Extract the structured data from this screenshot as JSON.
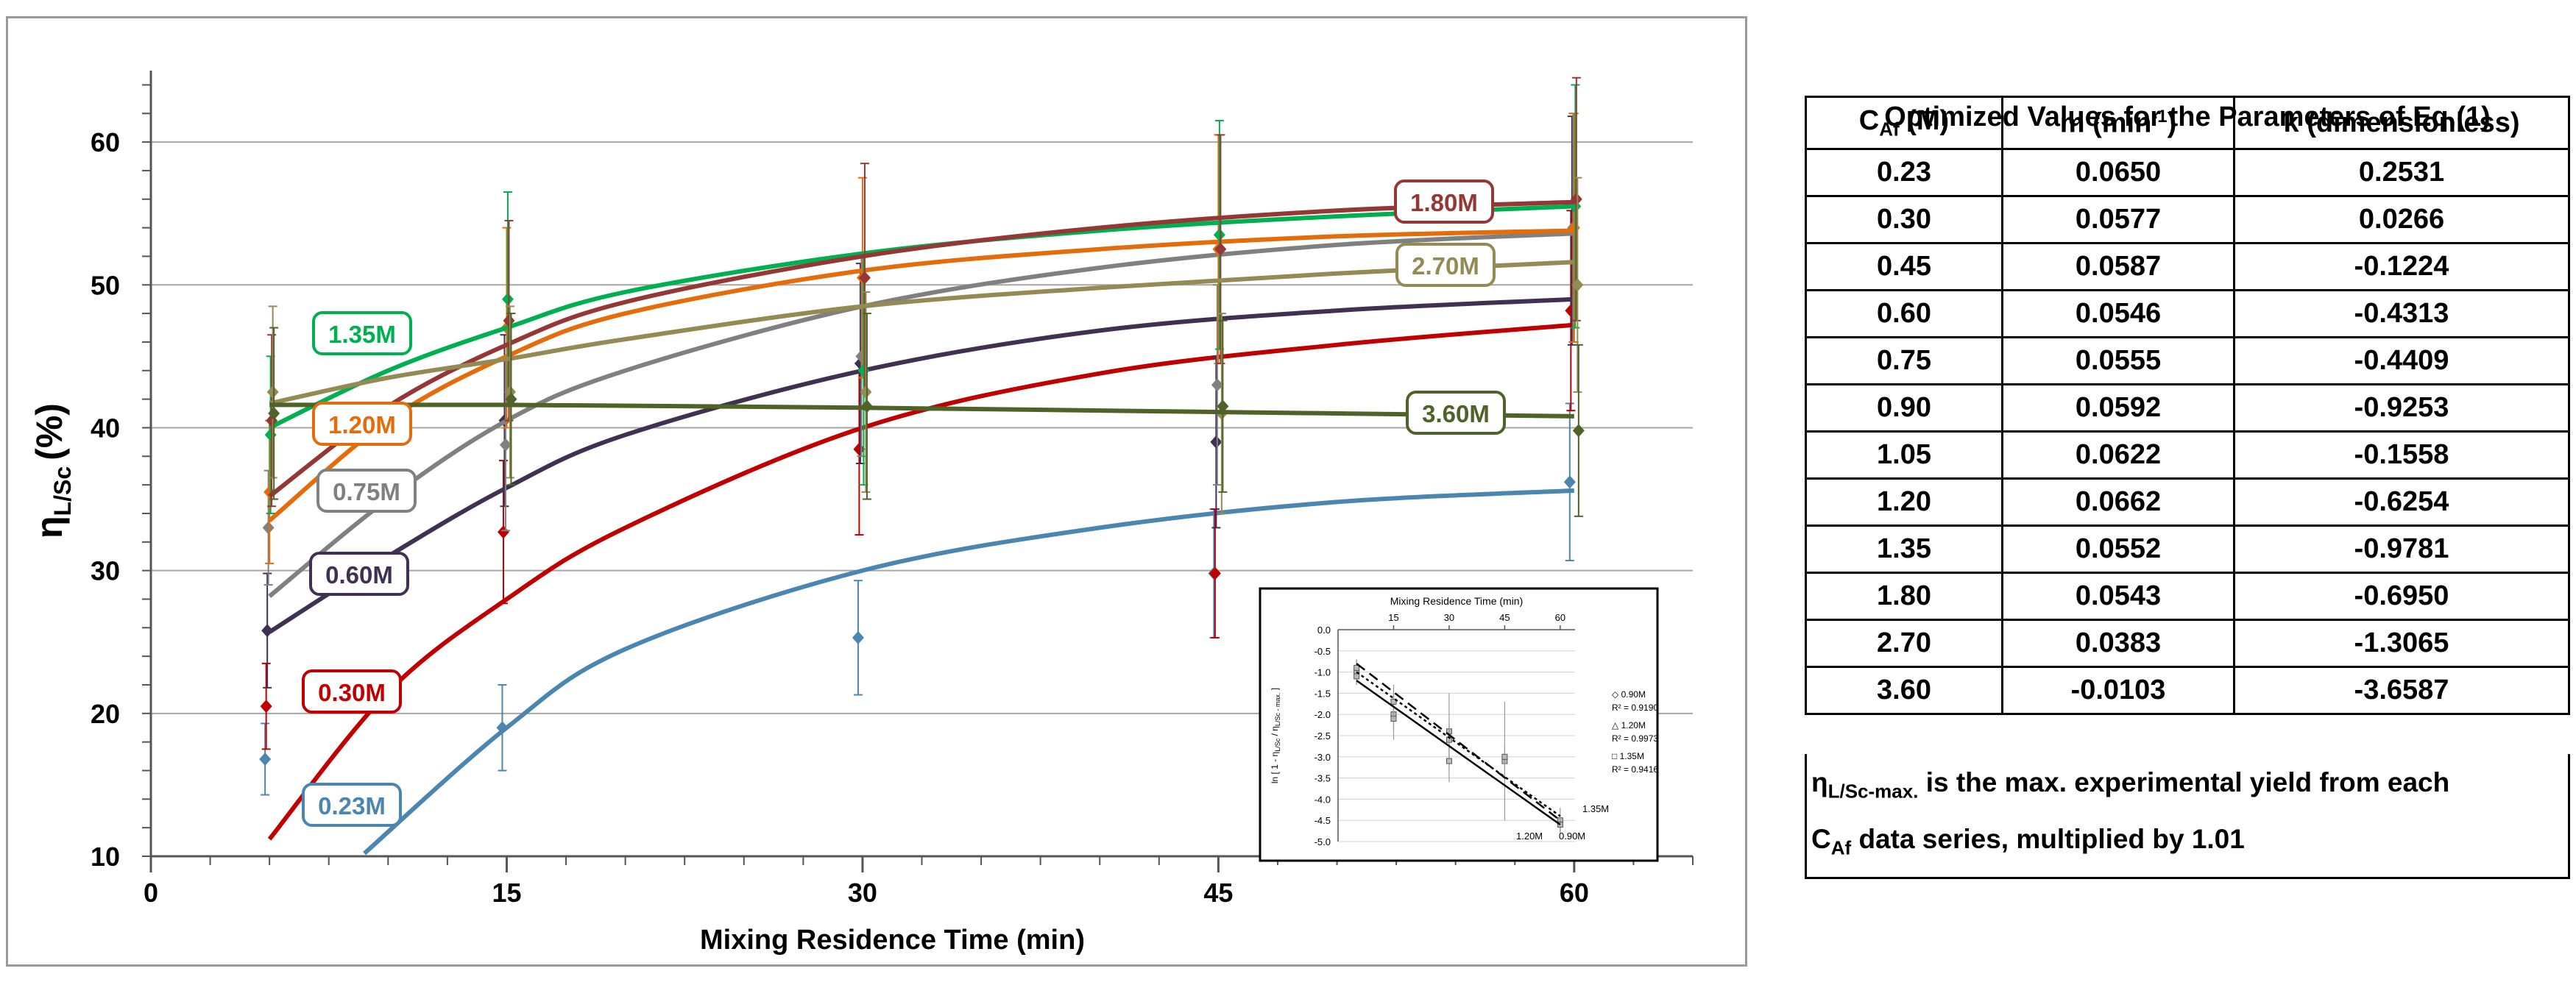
{
  "chart_data": {
    "type": "line",
    "ylabel_main": "η",
    "ylabel_sub": "L/Sc",
    "ylabel_unit": "(%)",
    "xlabel": "Mixing Residence Time (min)",
    "xlim": [
      0,
      65
    ],
    "ylim": [
      10,
      65
    ],
    "xticks": [
      "0",
      "15",
      "30",
      "45",
      "60"
    ],
    "xtick_values": [
      0,
      15,
      30,
      45,
      60
    ],
    "yticks": [
      "10",
      "20",
      "30",
      "40",
      "50",
      "60"
    ],
    "ytick_values": [
      10,
      20,
      30,
      40,
      50,
      60
    ],
    "x": [
      5,
      15,
      30,
      45,
      60
    ],
    "series": [
      {
        "name": "0.23M",
        "color": "#4a86b0",
        "label": "0.23M",
        "curve_start": 0,
        "points": [
          16.8,
          19.0,
          25.3,
          29.8,
          36.2
        ],
        "errors": [
          2.5,
          3.0,
          4.0,
          4.5,
          5.5
        ],
        "curve": [
          [
            9,
            10.2
          ],
          [
            15,
            19.0
          ],
          [
            20,
            24.5
          ],
          [
            30,
            30.0
          ],
          [
            40,
            33.0
          ],
          [
            50,
            34.8
          ],
          [
            60,
            35.6
          ]
        ]
      },
      {
        "name": "0.30M",
        "color": "#c00000",
        "label": "0.30M",
        "points": [
          20.5,
          32.7,
          38.5,
          29.8,
          48.2
        ],
        "errors": [
          3.0,
          5.0,
          6.0,
          4.5,
          7.0
        ],
        "curve": [
          [
            5,
            11.2
          ],
          [
            10,
            21.5
          ],
          [
            15,
            28.0
          ],
          [
            20,
            33.0
          ],
          [
            30,
            40.0
          ],
          [
            40,
            43.8
          ],
          [
            50,
            45.8
          ],
          [
            60,
            47.2
          ]
        ]
      },
      {
        "name": "0.60M",
        "color": "#403152",
        "label": "0.60M",
        "points": [
          25.8,
          40.5,
          44.5,
          39.0,
          53.8
        ],
        "errors": [
          4.0,
          6.0,
          7.0,
          6.0,
          8.0
        ],
        "curve": [
          [
            5,
            25.7
          ],
          [
            10,
            31.0
          ],
          [
            15,
            35.8
          ],
          [
            20,
            39.5
          ],
          [
            30,
            44.0
          ],
          [
            40,
            46.8
          ],
          [
            50,
            48.2
          ],
          [
            60,
            49.0
          ]
        ]
      },
      {
        "name": "0.75M",
        "color": "#808080",
        "label": "0.75M",
        "points": [
          33.0,
          38.8,
          45.0,
          43.0,
          54.0
        ],
        "errors": [
          4.0,
          6.0,
          7.0,
          7.0,
          8.0
        ],
        "curve": [
          [
            5,
            28.2
          ],
          [
            10,
            35.0
          ],
          [
            15,
            40.5
          ],
          [
            20,
            44.0
          ],
          [
            30,
            48.5
          ],
          [
            40,
            51.2
          ],
          [
            50,
            52.8
          ],
          [
            60,
            53.6
          ]
        ]
      },
      {
        "name": "1.20M",
        "color": "#e46c0a",
        "label": "1.20M",
        "points": [
          35.5,
          47.0,
          50.5,
          52.5,
          54.0
        ],
        "errors": [
          5.0,
          7.0,
          7.0,
          8.0,
          8.0
        ],
        "curve": [
          [
            5,
            33.5
          ],
          [
            10,
            40.5
          ],
          [
            15,
            45.0
          ],
          [
            20,
            48.0
          ],
          [
            30,
            51.0
          ],
          [
            40,
            52.5
          ],
          [
            50,
            53.4
          ],
          [
            60,
            53.8
          ]
        ]
      },
      {
        "name": "1.35M",
        "color": "#00b050",
        "label": "1.35M",
        "points": [
          39.5,
          49.0,
          44.0,
          53.5,
          55.5
        ],
        "errors": [
          5.5,
          7.5,
          8.0,
          8.0,
          8.5
        ],
        "curve": [
          [
            5,
            40.0
          ],
          [
            10,
            44.0
          ],
          [
            15,
            47.0
          ],
          [
            20,
            49.5
          ],
          [
            30,
            52.2
          ],
          [
            40,
            53.8
          ],
          [
            50,
            54.8
          ],
          [
            60,
            55.5
          ]
        ]
      },
      {
        "name": "1.80M",
        "color": "#953735",
        "label": "1.80M",
        "points": [
          40.5,
          47.5,
          50.5,
          52.5,
          56.0
        ],
        "errors": [
          6.0,
          7.0,
          8.0,
          8.0,
          8.5
        ],
        "curve": [
          [
            5,
            35.2
          ],
          [
            10,
            41.5
          ],
          [
            15,
            45.8
          ],
          [
            20,
            48.8
          ],
          [
            30,
            52.0
          ],
          [
            40,
            54.0
          ],
          [
            50,
            55.2
          ],
          [
            60,
            55.8
          ]
        ]
      },
      {
        "name": "2.70M",
        "color": "#948a54",
        "label": "2.70M",
        "points": [
          42.5,
          42.5,
          42.5,
          41.0,
          50.0
        ],
        "errors": [
          6.0,
          6.0,
          7.0,
          7.0,
          7.5
        ],
        "curve": [
          [
            5,
            41.7
          ],
          [
            10,
            43.5
          ],
          [
            15,
            44.8
          ],
          [
            20,
            46.2
          ],
          [
            30,
            48.5
          ],
          [
            40,
            49.8
          ],
          [
            50,
            50.8
          ],
          [
            60,
            51.6
          ]
        ]
      },
      {
        "name": "3.60M",
        "color": "#4f6228",
        "label": "3.60M",
        "points": [
          41.0,
          42.0,
          41.5,
          41.5,
          39.8
        ],
        "errors": [
          6.0,
          6.0,
          6.5,
          6.0,
          6.0
        ],
        "curve": [
          [
            5,
            41.6
          ],
          [
            15,
            41.6
          ],
          [
            30,
            41.4
          ],
          [
            45,
            41.1
          ],
          [
            60,
            40.8
          ]
        ]
      }
    ],
    "inset": {
      "title": "Mixing Residence Time (min)",
      "ylabel": "ln [ 1 - η",
      "ylabel_sub": "L/Sc",
      "ylabel_mid": " / η",
      "ylabel_sub2": "L/Sc - max.",
      "ylabel_end": " ]",
      "xticks": [
        "15",
        "30",
        "45",
        "60"
      ],
      "xtick_values": [
        15,
        30,
        45,
        60
      ],
      "yticks": [
        "0.0",
        "-0.5",
        "-1.0",
        "-1.5",
        "-2.0",
        "-2.5",
        "-3.0",
        "-3.5",
        "-4.0",
        "-4.5",
        "-5.0"
      ],
      "ytick_values": [
        0,
        -0.5,
        -1,
        -1.5,
        -2,
        -2.5,
        -3,
        -3.5,
        -4,
        -4.5,
        -5
      ],
      "xlim": [
        0,
        64
      ],
      "ylim": [
        -5,
        0
      ],
      "legend": [
        "◇ 0.90M",
        "R² = 0.9190",
        "△ 1.20M",
        "R² = 0.9973",
        "□ 1.35M",
        "R² = 0.9416"
      ],
      "lines": [
        {
          "name": "0.90M",
          "dash": "14,8",
          "x": [
            5,
            60
          ],
          "y": [
            -0.8,
            -4.5
          ]
        },
        {
          "name": "1.20M",
          "dash": "4,4",
          "x": [
            5,
            60
          ],
          "y": [
            -1.0,
            -4.4
          ]
        },
        {
          "name": "1.35M",
          "dash": "",
          "x": [
            5,
            60
          ],
          "y": [
            -1.2,
            -4.6
          ]
        }
      ],
      "line_labels": [
        "1.35M",
        "1.20M",
        "0.90M"
      ],
      "points": [
        {
          "x": 5,
          "y": -1.0,
          "err": 0.3
        },
        {
          "x": 5,
          "y": -1.1,
          "err": 0.2
        },
        {
          "x": 5,
          "y": -0.9,
          "err": 0.2
        },
        {
          "x": 15,
          "y": -2.0,
          "err": 0.6
        },
        {
          "x": 15,
          "y": -2.1,
          "err": 0.3
        },
        {
          "x": 15,
          "y": -1.7,
          "err": 0.4
        },
        {
          "x": 30,
          "y": -2.4,
          "err": 0.9
        },
        {
          "x": 30,
          "y": -2.6,
          "err": 0.4
        },
        {
          "x": 30,
          "y": -3.1,
          "err": 0.5
        },
        {
          "x": 45,
          "y": -3.1,
          "err": 1.4
        },
        {
          "x": 45,
          "y": -3.0,
          "err": 0.3
        },
        {
          "x": 60,
          "y": -4.5,
          "err": 0.3
        },
        {
          "x": 60,
          "y": -4.6,
          "err": 0.2
        }
      ]
    }
  },
  "table": {
    "title": "Optimized Values for the Parameters of Eq.(1)",
    "headers": {
      "c_main": "C",
      "c_sub": "Af",
      "c_unit": " (M)",
      "m_main": "m (min",
      "m_sup": "-1",
      "m_end": ")",
      "k": "k (dimensionless)"
    },
    "rows": [
      [
        "0.23",
        "0.0650",
        "0.2531"
      ],
      [
        "0.30",
        "0.0577",
        "0.0266"
      ],
      [
        "0.45",
        "0.0587",
        "-0.1224"
      ],
      [
        "0.60",
        "0.0546",
        "-0.4313"
      ],
      [
        "0.75",
        "0.0555",
        "-0.4409"
      ],
      [
        "0.90",
        "0.0592",
        "-0.9253"
      ],
      [
        "1.05",
        "0.0622",
        "-0.1558"
      ],
      [
        "1.20",
        "0.0662",
        "-0.6254"
      ],
      [
        "1.35",
        "0.0552",
        "-0.9781"
      ],
      [
        "1.80",
        "0.0543",
        "-0.6950"
      ],
      [
        "2.70",
        "0.0383",
        "-1.3065"
      ],
      [
        "3.60",
        "-0.0103",
        "-3.6587"
      ]
    ],
    "note": {
      "eta": "η",
      "eta_sub": "L/Sc-max.",
      "text1": " is the max. experimental yield from each",
      "c": "C",
      "c_sub": "Af",
      "text2": " data series, multiplied by 1.01"
    }
  }
}
